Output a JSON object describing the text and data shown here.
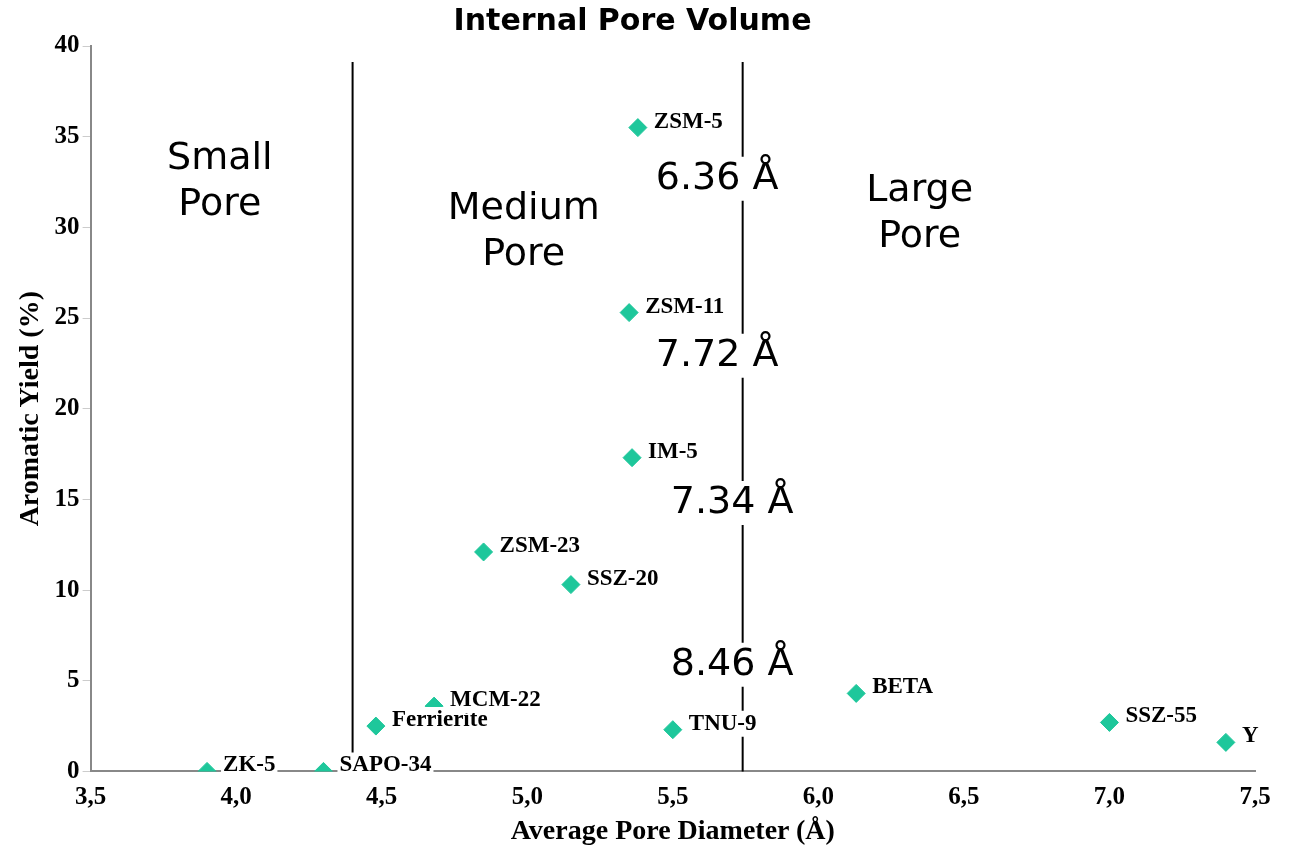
{
  "chart_data": {
    "type": "scatter",
    "title": "Internal Pore Volume",
    "xlabel": "Average Pore Diameter (Å)",
    "ylabel": "Aromatic Yield (%)",
    "xlim": [
      3.5,
      7.5
    ],
    "xticks": [
      {
        "value": 3.5,
        "label": "3,5"
      },
      {
        "value": 4.0,
        "label": "4,0"
      },
      {
        "value": 4.5,
        "label": "4,5"
      },
      {
        "value": 5.0,
        "label": "5,0"
      },
      {
        "value": 5.5,
        "label": "5,5"
      },
      {
        "value": 6.0,
        "label": "6,0"
      },
      {
        "value": 6.5,
        "label": "6,5"
      },
      {
        "value": 7.0,
        "label": "7,0"
      },
      {
        "value": 7.5,
        "label": "7,5"
      }
    ],
    "ylim": [
      0,
      40
    ],
    "yticks": [
      0,
      5,
      10,
      15,
      20,
      25,
      30,
      35,
      40
    ],
    "grid": false,
    "legend": false,
    "marker": "diamond",
    "series": [
      {
        "name": "ZK-5",
        "color": "#1ec79b",
        "x": [
          3.9
        ],
        "values": [
          0
        ]
      },
      {
        "name": "SAPO-34",
        "color": "#1ec79b",
        "x": [
          4.3
        ],
        "values": [
          0
        ]
      },
      {
        "name": "Ferrierite",
        "color": "#1ec79b",
        "x": [
          4.48
        ],
        "values": [
          2.5
        ]
      },
      {
        "name": "MCM-22",
        "color": "#1ec79b",
        "x": [
          4.68
        ],
        "values": [
          3.6
        ]
      },
      {
        "name": "ZSM-23",
        "color": "#1ec79b",
        "x": [
          4.85
        ],
        "values": [
          12.1
        ]
      },
      {
        "name": "SSZ-20",
        "color": "#1ec79b",
        "x": [
          5.15
        ],
        "values": [
          10.3
        ]
      },
      {
        "name": "IM-5",
        "color": "#1ec79b",
        "x": [
          5.36
        ],
        "values": [
          17.3
        ]
      },
      {
        "name": "ZSM-11",
        "color": "#1ec79b",
        "x": [
          5.35
        ],
        "values": [
          25.3
        ]
      },
      {
        "name": "ZSM-5",
        "color": "#1ec79b",
        "x": [
          5.38
        ],
        "values": [
          35.5
        ]
      },
      {
        "name": "TNU-9",
        "color": "#1ec79b",
        "x": [
          5.5
        ],
        "values": [
          2.3
        ]
      },
      {
        "name": "BETA",
        "color": "#1ec79b",
        "x": [
          6.13
        ],
        "values": [
          4.3
        ]
      },
      {
        "name": "SSZ-55",
        "color": "#1ec79b",
        "x": [
          7.0
        ],
        "values": [
          2.7
        ]
      },
      {
        "name": "Y",
        "color": "#1ec79b",
        "x": [
          7.4
        ],
        "values": [
          1.6
        ]
      }
    ],
    "ref_lines": [
      {
        "axis": "x",
        "value": 4.4,
        "color": "#000000"
      },
      {
        "axis": "x",
        "value": 5.74,
        "color": "#000000"
      }
    ],
    "annotations": [
      "Small Pore",
      "Medium Pore",
      "Large Pore",
      "6.36 Å",
      "7.72 Å",
      "7.34 Å",
      "8.46 Å"
    ]
  }
}
